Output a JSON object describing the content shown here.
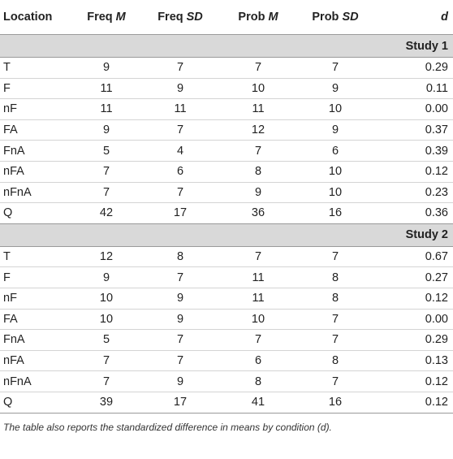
{
  "table": {
    "headers": [
      {
        "main": "Location",
        "ital": ""
      },
      {
        "main": "Freq ",
        "ital": "M"
      },
      {
        "main": "Freq ",
        "ital": "SD"
      },
      {
        "main": "Prob ",
        "ital": "M"
      },
      {
        "main": "Prob ",
        "ital": "SD"
      },
      {
        "main": "",
        "ital": "d"
      }
    ],
    "sections": [
      {
        "title": "Study 1",
        "rows": [
          [
            "T",
            "9",
            "7",
            "7",
            "7",
            "0.29"
          ],
          [
            "F",
            "11",
            "9",
            "10",
            "9",
            "0.11"
          ],
          [
            "nF",
            "11",
            "11",
            "11",
            "10",
            "0.00"
          ],
          [
            "FA",
            "9",
            "7",
            "12",
            "9",
            "0.37"
          ],
          [
            "FnA",
            "5",
            "4",
            "7",
            "6",
            "0.39"
          ],
          [
            "nFA",
            "7",
            "6",
            "8",
            "10",
            "0.12"
          ],
          [
            "nFnA",
            "7",
            "7",
            "9",
            "10",
            "0.23"
          ],
          [
            "Q",
            "42",
            "17",
            "36",
            "16",
            "0.36"
          ]
        ]
      },
      {
        "title": "Study 2",
        "rows": [
          [
            "T",
            "12",
            "8",
            "7",
            "7",
            "0.67"
          ],
          [
            "F",
            "9",
            "7",
            "11",
            "8",
            "0.27"
          ],
          [
            "nF",
            "10",
            "9",
            "11",
            "8",
            "0.12"
          ],
          [
            "FA",
            "10",
            "9",
            "10",
            "7",
            "0.00"
          ],
          [
            "FnA",
            "5",
            "7",
            "7",
            "7",
            "0.29"
          ],
          [
            "nFA",
            "7",
            "7",
            "6",
            "8",
            "0.13"
          ],
          [
            "nFnA",
            "7",
            "9",
            "8",
            "7",
            "0.12"
          ],
          [
            "Q",
            "39",
            "17",
            "41",
            "16",
            "0.12"
          ]
        ]
      }
    ]
  },
  "footnote": "The table also reports the standardized difference in means by condition (d)."
}
